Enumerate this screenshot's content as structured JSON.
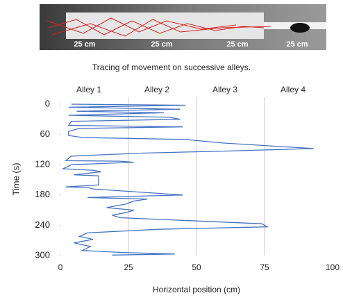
{
  "photo": {
    "labels": [
      "25 cm",
      "25 cm",
      "25 cm",
      "25 cm"
    ]
  },
  "caption": "Tracing of movement on successive alleys.",
  "chart_data": {
    "type": "line",
    "annotations": [
      "Alley 1",
      "Alley 2",
      "Alley 3",
      "Alley 4"
    ],
    "xlabel": "Horizontal position (cm)",
    "ylabel": "Time (s)",
    "x": [
      4,
      46,
      3,
      44,
      6,
      38,
      3,
      40,
      44,
      4,
      3,
      45,
      7,
      3,
      3,
      8,
      46,
      60,
      93,
      60,
      30,
      4,
      2,
      22,
      27,
      4,
      1,
      12,
      15,
      5,
      14,
      14,
      2,
      10,
      12,
      45,
      10,
      32,
      27,
      24,
      17,
      27,
      24,
      19,
      22,
      74,
      76,
      36,
      10,
      7,
      12,
      5,
      11,
      8,
      23,
      42,
      19
    ],
    "values": [
      0,
      2,
      6,
      10,
      14,
      17,
      22,
      26,
      30,
      34,
      42,
      45,
      48,
      54,
      62,
      66,
      70,
      77,
      88,
      93,
      97,
      103,
      112,
      113,
      115,
      120,
      128,
      131,
      134,
      140,
      142,
      160,
      164,
      165,
      168,
      180,
      185,
      188,
      192,
      198,
      205,
      210,
      215,
      220,
      225,
      237,
      243,
      248,
      255,
      262,
      268,
      275,
      282,
      290,
      294,
      297,
      299
    ],
    "color": "#4472c4",
    "xlim": [
      0,
      100
    ],
    "xticks": [
      0,
      25,
      50,
      75,
      100
    ],
    "ylim": [
      0,
      300
    ],
    "yticks": [
      0,
      60,
      120,
      180,
      240,
      300
    ],
    "y_inverted": true,
    "grid": true
  }
}
